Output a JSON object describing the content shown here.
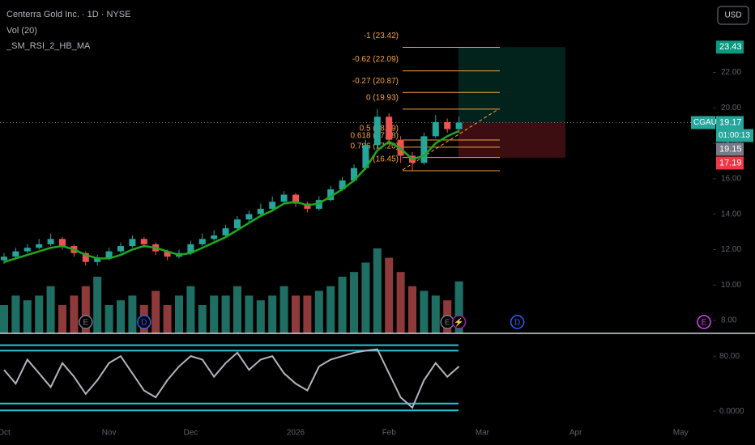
{
  "chart_data": {
    "type": "candlestick",
    "title": "Centerra Gold Inc. · 1D · NYSE",
    "indicators": [
      "Vol (20)",
      "_SM_RSI_2_HB_MA"
    ],
    "currency": "USD",
    "symbol": "CGAU",
    "countdown": "01:00:13",
    "categories": [
      "Oct",
      null,
      null,
      null,
      null,
      null,
      null,
      null,
      null,
      "Nov",
      null,
      null,
      null,
      null,
      null,
      null,
      "Dec",
      null,
      null,
      null,
      null,
      null,
      null,
      null,
      null,
      "2026",
      null,
      null,
      null,
      null,
      null,
      null,
      null,
      "Feb",
      null,
      null,
      null,
      null,
      null,
      null,
      null,
      "Mar",
      null,
      null,
      null,
      null,
      null,
      null,
      null,
      "Apr",
      null,
      null,
      null,
      null,
      null,
      null,
      null,
      null,
      "May",
      null,
      null
    ],
    "open": [
      11.4,
      11.6,
      11.9,
      12.1,
      12.3,
      12.6,
      12.2,
      11.8,
      11.3,
      11.5,
      11.9,
      12.2,
      12.6,
      12.3,
      11.9,
      11.6,
      11.8,
      12.3,
      12.6,
      12.8,
      13.2,
      13.7,
      14.0,
      14.3,
      14.7,
      15.1,
      14.6,
      14.3,
      14.8,
      15.4,
      15.9,
      16.6,
      17.9,
      19.5,
      18.2,
      17.3,
      16.9,
      18.4,
      19.2,
      18.8,
      null,
      null,
      null,
      null,
      null,
      null,
      null,
      null,
      null,
      null,
      null,
      null,
      null,
      null,
      null,
      null,
      null,
      null,
      null,
      null,
      null
    ],
    "high": [
      11.8,
      12.1,
      12.3,
      12.6,
      12.9,
      12.7,
      12.3,
      11.9,
      11.7,
      12.1,
      12.4,
      12.8,
      12.7,
      12.4,
      12.0,
      12.0,
      12.5,
      12.9,
      13.1,
      13.4,
      13.9,
      14.2,
      14.6,
      15.0,
      15.3,
      15.2,
      14.7,
      15.0,
      15.6,
      16.1,
      16.8,
      18.2,
      19.93,
      19.7,
      18.4,
      17.5,
      18.6,
      19.6,
      19.4,
      19.5,
      null,
      null,
      null,
      null,
      null,
      null,
      null,
      null,
      null,
      null,
      null,
      null,
      null,
      null,
      null,
      null,
      null,
      null,
      null,
      null,
      null
    ],
    "low": [
      11.2,
      11.5,
      11.8,
      12.0,
      12.2,
      12.0,
      11.6,
      11.1,
      11.1,
      11.4,
      11.8,
      12.1,
      12.1,
      11.7,
      11.4,
      11.5,
      11.7,
      12.2,
      12.5,
      12.7,
      13.1,
      13.5,
      13.9,
      14.2,
      14.6,
      14.4,
      14.1,
      14.2,
      14.7,
      15.3,
      15.8,
      16.5,
      17.7,
      17.9,
      16.9,
      16.45,
      16.8,
      18.3,
      18.6,
      18.6,
      null,
      null,
      null,
      null,
      null,
      null,
      null,
      null,
      null,
      null,
      null,
      null,
      null,
      null,
      null,
      null,
      null,
      null,
      null,
      null,
      null
    ],
    "close": [
      11.6,
      11.9,
      12.1,
      12.3,
      12.6,
      12.2,
      11.8,
      11.3,
      11.5,
      11.9,
      12.2,
      12.6,
      12.3,
      11.9,
      11.6,
      11.8,
      12.3,
      12.6,
      12.8,
      13.2,
      13.7,
      14.0,
      14.3,
      14.7,
      15.1,
      14.6,
      14.3,
      14.8,
      15.4,
      15.9,
      16.6,
      17.9,
      19.5,
      18.2,
      17.3,
      16.9,
      18.4,
      19.2,
      18.8,
      19.17,
      null,
      null,
      null,
      null,
      null,
      null,
      null,
      null,
      null,
      null,
      null,
      null,
      null,
      null,
      null,
      null,
      null,
      null,
      null,
      null,
      null
    ],
    "volume": [
      3,
      4,
      3.5,
      4,
      5,
      3,
      4,
      5,
      6,
      3,
      3.5,
      4,
      3,
      4.5,
      3,
      4,
      5,
      3,
      4,
      4,
      5,
      4,
      3.5,
      4,
      5,
      4,
      4,
      4.5,
      5,
      6,
      6.5,
      7.5,
      9,
      8,
      6.5,
      5,
      4.5,
      4,
      3.5,
      5.5,
      null,
      null,
      null,
      null,
      null,
      null,
      null,
      null,
      null,
      null,
      null,
      null,
      null,
      null,
      null,
      null,
      null,
      null,
      null,
      null,
      null
    ],
    "up_color": "#26a69a",
    "down_color": "#ef5350",
    "ma": {
      "color": "#1fa81f",
      "values": [
        11.3,
        11.5,
        11.7,
        11.9,
        12.1,
        12.2,
        12.0,
        11.7,
        11.5,
        11.5,
        11.7,
        12.0,
        12.2,
        12.1,
        11.9,
        11.7,
        11.8,
        12.1,
        12.4,
        12.7,
        13.1,
        13.5,
        13.9,
        14.2,
        14.6,
        14.7,
        14.5,
        14.6,
        15.0,
        15.4,
        15.9,
        16.6,
        17.6,
        18.1,
        17.7,
        17.1,
        17.3,
        18.0,
        18.4,
        18.7,
        null,
        null,
        null,
        null,
        null,
        null,
        null,
        null,
        null,
        null,
        null,
        null,
        null,
        null,
        null,
        null,
        null,
        null,
        null,
        null,
        null
      ]
    },
    "ylim": [
      7.27,
      26.09
    ],
    "yticks": [
      {
        "value": 22,
        "label": "22.00"
      },
      {
        "value": 20,
        "label": "20.00"
      },
      {
        "value": 18,
        "label": "18.00"
      },
      {
        "value": 16,
        "label": "16.00"
      },
      {
        "value": 14,
        "label": "14.00"
      },
      {
        "value": 12,
        "label": "12.00"
      },
      {
        "value": 10,
        "label": "10.00"
      },
      {
        "value": 8,
        "label": "8.00"
      }
    ],
    "price_tags": [
      {
        "value": 23.43,
        "label": "23.43",
        "color": "#089981"
      },
      {
        "value": 19.17,
        "label": "19.17",
        "color": "#26a69a"
      },
      {
        "value": 19.15,
        "label": "19.15",
        "color": "#787b86"
      },
      {
        "value": 17.19,
        "label": "17.19",
        "color": "#f23645"
      }
    ],
    "fib": {
      "color": "#f7a23b",
      "levels": [
        {
          "label": "-1 (23.42)",
          "value": 23.42
        },
        {
          "label": "-0.62 (22.09)",
          "value": 22.09
        },
        {
          "label": "-0.27 (20.87)",
          "value": 20.87
        },
        {
          "label": "0 (19.93)",
          "value": 19.93
        },
        {
          "label": "0.5 (18.19)",
          "value": 18.19
        },
        {
          "label": "0.618 (17.78)",
          "value": 17.78
        },
        {
          "label": "0.786 (17.20)",
          "value": 17.2
        },
        {
          "label": "1 (16.45)",
          "value": 16.45
        }
      ]
    },
    "position": {
      "target": 23.43,
      "entry": 19.17,
      "stop": 17.19
    },
    "rsi": {
      "color": "#b2b5be",
      "band_color": "#26c6da",
      "ylim": [
        -14,
        112
      ],
      "yticks": [
        {
          "value": 80,
          "label": "80.00"
        },
        {
          "value": 0,
          "label": "0.0000"
        }
      ],
      "levels": [
        96,
        88,
        11,
        1
      ],
      "values": [
        60,
        40,
        75,
        55,
        35,
        70,
        50,
        25,
        45,
        70,
        80,
        55,
        30,
        20,
        45,
        65,
        80,
        75,
        50,
        70,
        85,
        60,
        75,
        80,
        55,
        40,
        30,
        65,
        75,
        80,
        85,
        88,
        90,
        55,
        20,
        5,
        45,
        70,
        50,
        65,
        null,
        null,
        null,
        null,
        null,
        null,
        null,
        null,
        null,
        null,
        null,
        null,
        null,
        null,
        null,
        null,
        null,
        null,
        null,
        null,
        null
      ]
    },
    "events": [
      {
        "label": "E",
        "index": 7,
        "color": "#787b86"
      },
      {
        "label": "D",
        "index": 12,
        "color": "#2962ff"
      },
      {
        "label": "E",
        "index": 38,
        "color": "#787b86"
      },
      {
        "label": "⚡",
        "index": 39,
        "color": "#9c27b0"
      },
      {
        "label": "D",
        "index": 44,
        "color": "#2962ff"
      },
      {
        "label": "E",
        "index": 60,
        "color": "#e040fb"
      }
    ]
  }
}
